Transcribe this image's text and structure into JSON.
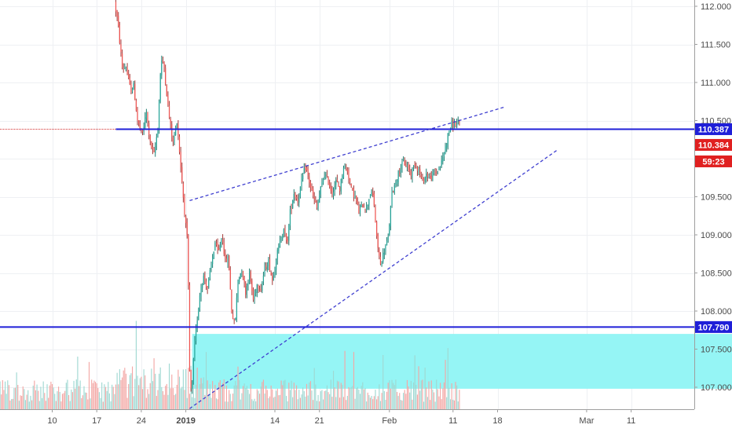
{
  "chart_data": {
    "type": "candlestick",
    "price_axis": {
      "ticks": [
        "112.000",
        "111.500",
        "111.000",
        "110.500",
        "110.000",
        "109.500",
        "109.000",
        "108.500",
        "108.000",
        "107.500",
        "107.000"
      ],
      "tick_values": [
        112.0,
        111.5,
        111.0,
        110.5,
        110.0,
        109.5,
        109.0,
        108.5,
        108.0,
        107.5,
        107.0
      ],
      "ylim": [
        106.63,
        112.1
      ]
    },
    "time_axis": {
      "labels": [
        "10",
        "17",
        "24",
        "2019",
        "14",
        "21",
        "Feb",
        "11",
        "18",
        "Mar",
        "11"
      ],
      "bold_labels": [
        "2019"
      ],
      "label_pos": [
        10,
        17,
        24,
        31,
        45,
        52,
        63,
        73,
        80,
        94,
        101
      ]
    },
    "price_range": [
      107.0,
      112.0
    ],
    "bars_per_day": 5,
    "last_candle_day": 74,
    "colors": {
      "up": "#26a69a",
      "up_wick": "#1b7c70",
      "down": "#ef5350",
      "down_wick": "#a33a38",
      "vol_up": "#9fd8d2",
      "vol_down": "#f3a7a5",
      "level_line": "#1f1fd8",
      "trend_line": "#3f3fd0",
      "zone": "#8ff4f4",
      "red_tag": "#e02020",
      "label_line": "#d32f2f"
    },
    "horizontal_levels": [
      {
        "price": 110.387,
        "label": "110.387",
        "start_day": 20
      },
      {
        "price": 107.79,
        "label": "107.790",
        "start_day": 0
      }
    ],
    "last_price": {
      "price": 110.384,
      "label": "110.384",
      "countdown": "59:23"
    },
    "zone": {
      "from_day": 32,
      "to_day": 118,
      "top": 107.7,
      "bottom": 106.98
    },
    "trendlines": [
      {
        "from": {
          "day": 31.6,
          "price": 109.45
        },
        "to": {
          "day": 81.2,
          "price": 110.68
        },
        "style": "dashed"
      },
      {
        "from": {
          "day": 31.6,
          "price": 106.72
        },
        "to": {
          "day": 89.5,
          "price": 110.12
        },
        "style": "dashed"
      }
    ],
    "price_path": [
      [
        20.0,
        112.05
      ],
      [
        20.5,
        111.8
      ],
      [
        21.2,
        111.2
      ],
      [
        21.8,
        111.2
      ],
      [
        22.5,
        110.9
      ],
      [
        23.0,
        110.95
      ],
      [
        23.6,
        110.5
      ],
      [
        24.3,
        110.3
      ],
      [
        25.0,
        110.6
      ],
      [
        25.6,
        110.2
      ],
      [
        26.2,
        110.05
      ],
      [
        26.8,
        110.4
      ],
      [
        27.3,
        111.3
      ],
      [
        27.8,
        111.2
      ],
      [
        28.5,
        110.6
      ],
      [
        29.2,
        110.2
      ],
      [
        29.8,
        110.5
      ],
      [
        30.5,
        109.8
      ],
      [
        31.0,
        109.3
      ],
      [
        31.5,
        108.85
      ],
      [
        31.8,
        107.2
      ],
      [
        32.1,
        106.85
      ],
      [
        32.5,
        107.5
      ],
      [
        33.0,
        107.9
      ],
      [
        33.5,
        108.3
      ],
      [
        34.0,
        108.45
      ],
      [
        34.6,
        108.3
      ],
      [
        35.2,
        108.6
      ],
      [
        35.8,
        108.9
      ],
      [
        36.3,
        108.75
      ],
      [
        36.9,
        109.0
      ],
      [
        37.4,
        108.65
      ],
      [
        37.9,
        108.7
      ],
      [
        38.4,
        108.0
      ],
      [
        38.9,
        107.8
      ],
      [
        39.4,
        108.4
      ],
      [
        40.0,
        108.55
      ],
      [
        40.6,
        108.25
      ],
      [
        41.2,
        108.5
      ],
      [
        41.8,
        108.15
      ],
      [
        42.4,
        108.35
      ],
      [
        43.0,
        108.3
      ],
      [
        43.6,
        108.55
      ],
      [
        44.2,
        108.65
      ],
      [
        44.8,
        108.4
      ],
      [
        45.4,
        108.7
      ],
      [
        46.0,
        108.9
      ],
      [
        46.6,
        109.1
      ],
      [
        47.1,
        108.85
      ],
      [
        47.6,
        109.3
      ],
      [
        48.2,
        109.55
      ],
      [
        48.8,
        109.45
      ],
      [
        49.4,
        109.7
      ],
      [
        50.0,
        109.9
      ],
      [
        50.6,
        109.7
      ],
      [
        51.2,
        109.5
      ],
      [
        51.8,
        109.35
      ],
      [
        52.4,
        109.6
      ],
      [
        53.0,
        109.8
      ],
      [
        53.6,
        109.7
      ],
      [
        54.2,
        109.55
      ],
      [
        54.8,
        109.7
      ],
      [
        55.4,
        109.6
      ],
      [
        56.0,
        109.9
      ],
      [
        56.6,
        109.85
      ],
      [
        57.2,
        109.6
      ],
      [
        57.8,
        109.5
      ],
      [
        58.4,
        109.3
      ],
      [
        59.0,
        109.4
      ],
      [
        59.6,
        109.35
      ],
      [
        60.2,
        109.55
      ],
      [
        60.7,
        109.5
      ],
      [
        61.2,
        108.95
      ],
      [
        61.8,
        108.6
      ],
      [
        62.4,
        108.8
      ],
      [
        63.0,
        108.95
      ],
      [
        63.6,
        109.55
      ],
      [
        64.2,
        109.7
      ],
      [
        64.8,
        109.85
      ],
      [
        65.4,
        109.95
      ],
      [
        66.0,
        109.9
      ],
      [
        66.6,
        109.8
      ],
      [
        67.2,
        109.95
      ],
      [
        67.8,
        109.85
      ],
      [
        68.4,
        109.7
      ],
      [
        69.0,
        109.8
      ],
      [
        69.6,
        109.75
      ],
      [
        70.2,
        109.8
      ],
      [
        70.8,
        109.85
      ],
      [
        71.4,
        109.95
      ],
      [
        72.0,
        110.15
      ],
      [
        72.6,
        110.38
      ],
      [
        73.0,
        110.45
      ]
    ]
  }
}
